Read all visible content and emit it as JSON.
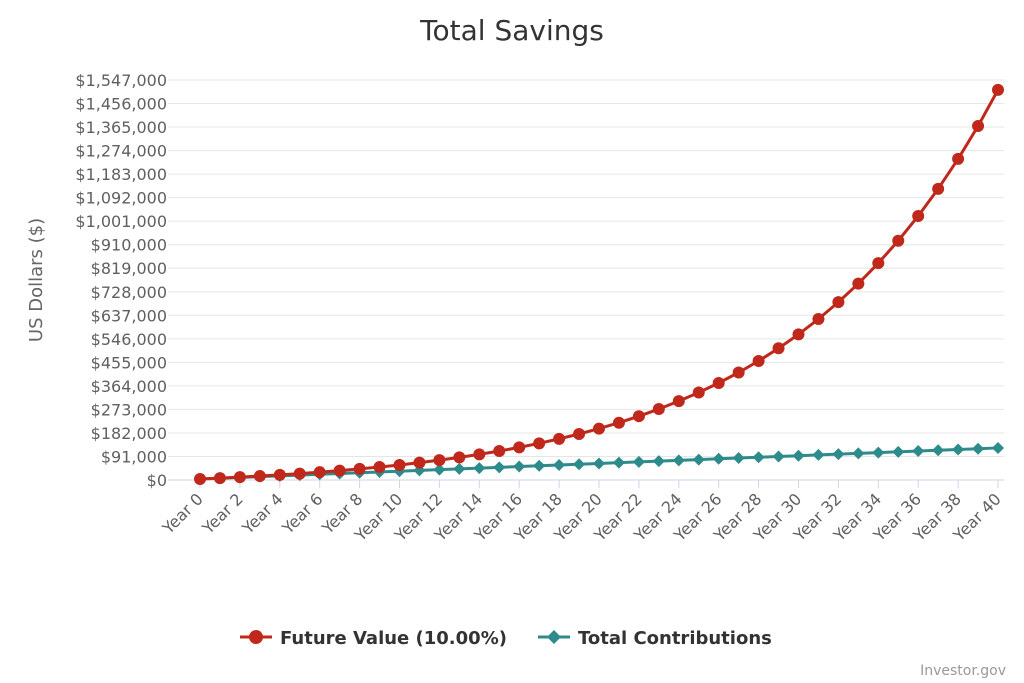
{
  "chart_data": {
    "type": "line",
    "title": "Total Savings",
    "xlabel": "",
    "ylabel": "US Dollars ($)",
    "ylim": [
      0,
      1547000
    ],
    "y_ticks": [
      "$0",
      "$91,000",
      "$182,000",
      "$273,000",
      "$364,000",
      "$455,000",
      "$546,000",
      "$637,000",
      "$728,000",
      "$819,000",
      "$910,000",
      "$1,001,000",
      "$1,092,000",
      "$1,183,000",
      "$1,274,000",
      "$1,365,000",
      "$1,456,000",
      "$1,547,000"
    ],
    "x": [
      "Year 0",
      "Year 1",
      "Year 2",
      "Year 3",
      "Year 4",
      "Year 5",
      "Year 6",
      "Year 7",
      "Year 8",
      "Year 9",
      "Year 10",
      "Year 11",
      "Year 12",
      "Year 13",
      "Year 14",
      "Year 15",
      "Year 16",
      "Year 17",
      "Year 18",
      "Year 19",
      "Year 20",
      "Year 21",
      "Year 22",
      "Year 23",
      "Year 24",
      "Year 25",
      "Year 26",
      "Year 27",
      "Year 28",
      "Year 29",
      "Year 30",
      "Year 31",
      "Year 32",
      "Year 33",
      "Year 34",
      "Year 35",
      "Year 36",
      "Year 37",
      "Year 38",
      "Year 39",
      "Year 40"
    ],
    "x_tick_labels": [
      "Year 0",
      "Year 2",
      "Year 4",
      "Year 6",
      "Year 8",
      "Year 10",
      "Year 12",
      "Year 14",
      "Year 16",
      "Year 18",
      "Year 20",
      "Year 22",
      "Year 24",
      "Year 26",
      "Year 28",
      "Year 30",
      "Year 32",
      "Year 34",
      "Year 36",
      "Year 38",
      "Year 40"
    ],
    "grid": true,
    "legend_position": "bottom-center",
    "series": [
      {
        "name": "Future Value (10.00%)",
        "color": "#c0281b",
        "marker": "circle",
        "values": [
          4000,
          7400,
          11140,
          15254,
          19779,
          24757,
          30233,
          36256,
          42882,
          50170,
          58187,
          67006,
          76706,
          87377,
          99115,
          112026,
          126229,
          141852,
          159037,
          177941,
          198735,
          221609,
          246770,
          274447,
          304891,
          338380,
          375218,
          415740,
          460314,
          509346,
          563280,
          622608,
          687869,
          759656,
          838622,
          925484,
          1021032,
          1126136,
          1241749,
          1368924,
          1508817
        ]
      },
      {
        "name": "Total Contributions",
        "color": "#2e8b8b",
        "marker": "diamond",
        "values": [
          4000,
          7000,
          10000,
          13000,
          16000,
          19000,
          22000,
          25000,
          28000,
          31000,
          34000,
          37000,
          40000,
          43000,
          46000,
          49000,
          52000,
          55000,
          58000,
          61000,
          64000,
          67000,
          70000,
          73000,
          76000,
          79000,
          82000,
          85000,
          88000,
          91000,
          94000,
          97000,
          100000,
          103000,
          106000,
          109000,
          112000,
          115000,
          118000,
          121000,
          124000
        ]
      }
    ]
  },
  "credit": "Investor.gov"
}
